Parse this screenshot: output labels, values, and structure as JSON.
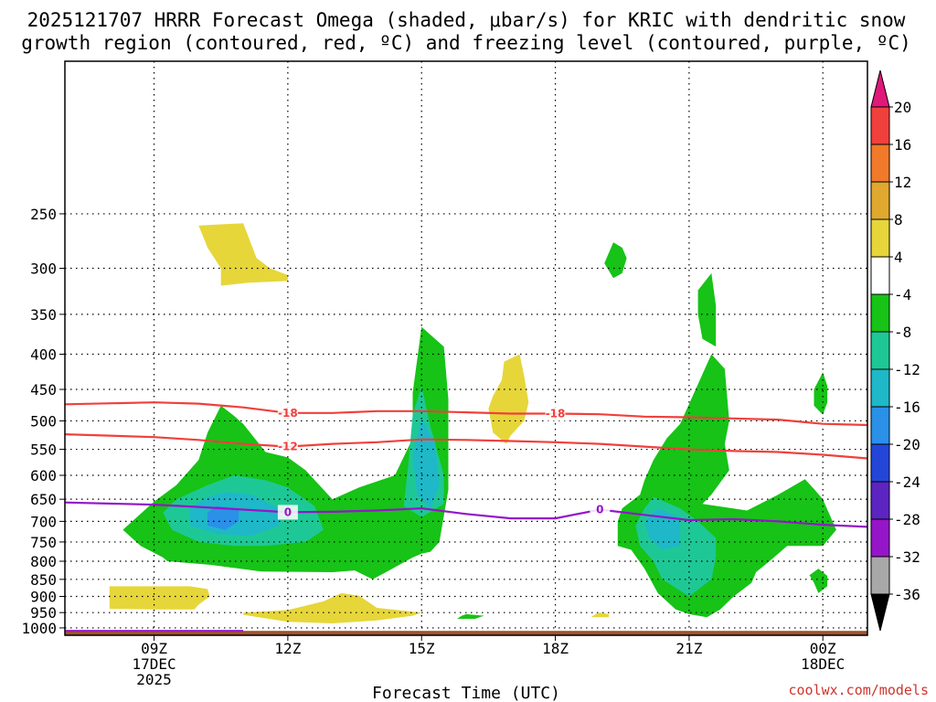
{
  "chart_data": {
    "type": "contour",
    "title_line1": "2025121707 HRRR Forecast Omega (shaded, μbar/s) for KRIC with dendritic snow",
    "title_line2": "growth region (contoured, red, ºC) and freezing level (contoured, purple, ºC)",
    "xlabel": "Forecast Time (UTC)",
    "credit": "coolwx.com/models",
    "x_range": [
      7,
      25
    ],
    "y_range": [
      1025,
      150
    ],
    "x_ticks": [
      {
        "v": 9,
        "l1": "09Z",
        "l2": "17DEC",
        "l3": "2025"
      },
      {
        "v": 12,
        "l1": "12Z"
      },
      {
        "v": 15,
        "l1": "15Z"
      },
      {
        "v": 18,
        "l1": "18Z"
      },
      {
        "v": 21,
        "l1": "21Z"
      },
      {
        "v": 24,
        "l1": "00Z",
        "l2": "18DEC"
      }
    ],
    "y_ticks": [
      "250",
      "300",
      "350",
      "400",
      "450",
      "500",
      "550",
      "600",
      "650",
      "700",
      "750",
      "800",
      "850",
      "900",
      "950",
      "1000"
    ],
    "colorbar_labels": [
      "20",
      "16",
      "12",
      "8",
      "4",
      "-4",
      "-8",
      "-12",
      "-16",
      "-20",
      "-24",
      "-28",
      "-32",
      "-36"
    ],
    "colorbar_colors": [
      "#e0187a",
      "#f0403c",
      "#f07a2a",
      "#e0a82e",
      "#e6d63a",
      "#ffffff",
      "#16c316",
      "#1ec896",
      "#1eb8c8",
      "#2a90e8",
      "#2446d8",
      "#5c24c0",
      "#9416c8",
      "#a8a8a8",
      "#000000"
    ],
    "series": [
      {
        "name": "-18C isotherm",
        "color": "#f0403c",
        "label": "-18",
        "x": [
          7,
          9,
          10,
          11,
          12,
          13,
          14,
          15,
          16,
          17,
          18,
          19,
          20,
          21,
          22,
          23,
          24,
          25
        ],
        "y": [
          473,
          470,
          472,
          478,
          487,
          487,
          484,
          484,
          486,
          488,
          488,
          489,
          493,
          494,
          496,
          498,
          505,
          507
        ]
      },
      {
        "name": "-12C isotherm",
        "color": "#f0403c",
        "label": "-12",
        "x": [
          7,
          9,
          10,
          11,
          12,
          13,
          14,
          15,
          16,
          17,
          18,
          19,
          20,
          21,
          22,
          23,
          24,
          25
        ],
        "y": [
          523,
          528,
          533,
          540,
          545,
          540,
          537,
          532,
          533,
          535,
          537,
          540,
          545,
          550,
          553,
          555,
          560,
          567
        ]
      },
      {
        "name": "Freezing level (0C)",
        "color": "#9416c8",
        "label": "0",
        "x": [
          7,
          9,
          10,
          11,
          12,
          13,
          14,
          15,
          16,
          17,
          18,
          19,
          20,
          21,
          22,
          23,
          24,
          25
        ],
        "y": [
          657,
          662,
          667,
          673,
          679,
          678,
          675,
          670,
          683,
          693,
          693,
          673,
          685,
          697,
          695,
          700,
          708,
          713
        ]
      }
    ],
    "shaded_regions": [
      {
        "level": "4",
        "color": "#e6d63a",
        "pts": [
          [
            10.0,
            260
          ],
          [
            11.0,
            258
          ],
          [
            11.3,
            290
          ],
          [
            11.6,
            300
          ],
          [
            12.0,
            307
          ],
          [
            12.0,
            313
          ],
          [
            11.1,
            315
          ],
          [
            10.5,
            318
          ],
          [
            10.5,
            300
          ],
          [
            10.2,
            280
          ]
        ]
      },
      {
        "level": "4",
        "color": "#e6d63a",
        "pts": [
          [
            9.8,
            870
          ],
          [
            10.2,
            878
          ],
          [
            10.25,
            900
          ],
          [
            10.0,
            925
          ],
          [
            9.9,
            940
          ],
          [
            9.0,
            940
          ],
          [
            8.0,
            938
          ],
          [
            8.0,
            870
          ]
        ]
      },
      {
        "level": "4",
        "color": "#e6d63a",
        "pts": [
          [
            11.0,
            950
          ],
          [
            12.0,
            942
          ],
          [
            12.8,
            915
          ],
          [
            13.2,
            890
          ],
          [
            13.6,
            898
          ],
          [
            14.0,
            935
          ],
          [
            15.0,
            950
          ],
          [
            14.8,
            960
          ],
          [
            14.0,
            975
          ],
          [
            13.0,
            985
          ],
          [
            12.0,
            980
          ],
          [
            11.0,
            957
          ]
        ]
      },
      {
        "level": "4",
        "color": "#e6d63a",
        "pts": [
          [
            16.8,
            436
          ],
          [
            16.85,
            410
          ],
          [
            17.2,
            400
          ],
          [
            17.3,
            430
          ],
          [
            17.4,
            470
          ],
          [
            17.3,
            500
          ],
          [
            17.0,
            525
          ],
          [
            16.9,
            540
          ],
          [
            16.6,
            520
          ],
          [
            16.5,
            480
          ],
          [
            16.6,
            460
          ]
        ]
      },
      {
        "level": "4",
        "color": "#e6d63a",
        "pts": [
          [
            19.0,
            950
          ],
          [
            19.2,
            955
          ],
          [
            19.2,
            965
          ],
          [
            18.8,
            965
          ],
          [
            18.9,
            955
          ]
        ]
      },
      {
        "level": "4",
        "color": "#e6d63a",
        "pts": [
          [
            21.0,
            700
          ],
          [
            21.1,
            740
          ],
          [
            21.0,
            790
          ],
          [
            20.6,
            790
          ],
          [
            20.4,
            760
          ],
          [
            20.4,
            720
          ],
          [
            20.7,
            700
          ]
        ]
      },
      {
        "level": "-4",
        "color": "#16c316",
        "pts": [
          [
            10.5,
            475
          ],
          [
            10.8,
            492
          ],
          [
            11.0,
            505
          ],
          [
            11.5,
            555
          ],
          [
            12.0,
            565
          ],
          [
            12.4,
            590
          ],
          [
            13.0,
            650
          ],
          [
            13.6,
            625
          ],
          [
            14.4,
            600
          ],
          [
            14.8,
            530
          ],
          [
            14.8,
            455
          ],
          [
            15.0,
            365
          ],
          [
            15.5,
            390
          ],
          [
            15.6,
            465
          ],
          [
            15.6,
            630
          ],
          [
            15.4,
            750
          ],
          [
            15.2,
            775
          ],
          [
            15.0,
            780
          ],
          [
            14.8,
            790
          ],
          [
            14.2,
            830
          ],
          [
            13.9,
            850
          ],
          [
            13.5,
            825
          ],
          [
            13.0,
            830
          ],
          [
            11.4,
            828
          ],
          [
            10.3,
            810
          ],
          [
            9.3,
            800
          ],
          [
            9.2,
            790
          ],
          [
            8.7,
            760
          ],
          [
            8.3,
            720
          ],
          [
            9.0,
            655
          ],
          [
            9.5,
            620
          ],
          [
            10.0,
            570
          ],
          [
            10.2,
            520
          ],
          [
            10.4,
            490
          ]
        ]
      },
      {
        "level": "-4",
        "color": "#16c316",
        "pts": [
          [
            20.8,
            505
          ],
          [
            21.5,
            400
          ],
          [
            21.8,
            420
          ],
          [
            21.9,
            500
          ],
          [
            21.8,
            540
          ],
          [
            21.9,
            590
          ],
          [
            21.5,
            640
          ],
          [
            21.3,
            660
          ],
          [
            22.3,
            675
          ],
          [
            23.0,
            640
          ],
          [
            23.6,
            608
          ],
          [
            23.8,
            628
          ],
          [
            24.0,
            650
          ],
          [
            24.3,
            720
          ],
          [
            24.0,
            760
          ],
          [
            23.2,
            760
          ],
          [
            23.0,
            780
          ],
          [
            22.8,
            800
          ],
          [
            22.5,
            830
          ],
          [
            22.4,
            860
          ],
          [
            22.0,
            900
          ],
          [
            21.7,
            940
          ],
          [
            21.4,
            965
          ],
          [
            21.0,
            955
          ],
          [
            20.7,
            940
          ],
          [
            20.3,
            890
          ],
          [
            20.0,
            820
          ],
          [
            19.7,
            770
          ],
          [
            19.4,
            760
          ],
          [
            19.4,
            700
          ],
          [
            19.5,
            670
          ],
          [
            19.9,
            640
          ],
          [
            20.0,
            610
          ],
          [
            20.2,
            570
          ],
          [
            20.5,
            530
          ]
        ]
      },
      {
        "level": "-4",
        "color": "#16c316",
        "pts": [
          [
            21.2,
            323
          ],
          [
            21.5,
            305
          ],
          [
            21.6,
            340
          ],
          [
            21.6,
            390
          ],
          [
            21.3,
            380
          ],
          [
            21.2,
            350
          ]
        ]
      },
      {
        "level": "-4",
        "color": "#16c316",
        "pts": [
          [
            19.3,
            275
          ],
          [
            19.5,
            280
          ],
          [
            19.6,
            290
          ],
          [
            19.5,
            305
          ],
          [
            19.3,
            310
          ],
          [
            19.1,
            295
          ]
        ]
      },
      {
        "level": "-4",
        "color": "#16c316",
        "pts": [
          [
            24.0,
            425
          ],
          [
            24.1,
            445
          ],
          [
            24.1,
            470
          ],
          [
            24.0,
            490
          ],
          [
            23.8,
            475
          ],
          [
            23.8,
            450
          ]
        ]
      },
      {
        "level": "-4",
        "color": "#16c316",
        "pts": [
          [
            23.9,
            820
          ],
          [
            24.1,
            840
          ],
          [
            24.1,
            870
          ],
          [
            23.9,
            890
          ],
          [
            23.8,
            860
          ],
          [
            23.7,
            838
          ]
        ]
      },
      {
        "level": "-4",
        "color": "#16c316",
        "pts": [
          [
            16.0,
            955
          ],
          [
            16.4,
            960
          ],
          [
            16.2,
            970
          ],
          [
            15.8,
            970
          ],
          [
            15.9,
            960
          ]
        ]
      },
      {
        "level": "-8",
        "color": "#1ec896",
        "pts": [
          [
            10.8,
            600
          ],
          [
            11.5,
            610
          ],
          [
            12.0,
            625
          ],
          [
            12.6,
            665
          ],
          [
            12.8,
            720
          ],
          [
            12.4,
            750
          ],
          [
            11.5,
            760
          ],
          [
            10.8,
            760
          ],
          [
            10.0,
            750
          ],
          [
            9.4,
            720
          ],
          [
            9.2,
            680
          ],
          [
            9.5,
            650
          ],
          [
            10.2,
            620
          ]
        ]
      },
      {
        "level": "-8",
        "color": "#1ec896",
        "pts": [
          [
            14.8,
            490
          ],
          [
            15.0,
            445
          ],
          [
            15.2,
            510
          ],
          [
            15.5,
            600
          ],
          [
            15.5,
            660
          ],
          [
            15.0,
            690
          ],
          [
            14.6,
            665
          ],
          [
            14.7,
            580
          ]
        ]
      },
      {
        "level": "-8",
        "color": "#1ec896",
        "pts": [
          [
            20.2,
            645
          ],
          [
            20.8,
            670
          ],
          [
            21.2,
            700
          ],
          [
            21.6,
            740
          ],
          [
            21.6,
            790
          ],
          [
            21.5,
            850
          ],
          [
            21.0,
            900
          ],
          [
            20.4,
            850
          ],
          [
            20.2,
            800
          ],
          [
            19.9,
            760
          ],
          [
            19.8,
            710
          ],
          [
            20.0,
            670
          ]
        ]
      },
      {
        "level": "-12",
        "color": "#1eb8c8",
        "pts": [
          [
            10.6,
            635
          ],
          [
            11.2,
            640
          ],
          [
            11.8,
            670
          ],
          [
            11.8,
            710
          ],
          [
            11.2,
            735
          ],
          [
            10.4,
            730
          ],
          [
            9.8,
            710
          ],
          [
            9.8,
            670
          ],
          [
            10.2,
            645
          ]
        ]
      },
      {
        "level": "-12",
        "color": "#1eb8c8",
        "pts": [
          [
            15.0,
            495
          ],
          [
            15.3,
            540
          ],
          [
            15.4,
            620
          ],
          [
            15.2,
            670
          ],
          [
            14.9,
            640
          ],
          [
            14.8,
            560
          ]
        ]
      },
      {
        "level": "-12",
        "color": "#1eb8c8",
        "pts": [
          [
            20.3,
            670
          ],
          [
            20.8,
            690
          ],
          [
            20.8,
            760
          ],
          [
            20.4,
            770
          ],
          [
            20.1,
            740
          ],
          [
            20.0,
            700
          ]
        ]
      },
      {
        "level": "-16",
        "color": "#2a90e8",
        "pts": [
          [
            10.4,
            665
          ],
          [
            10.9,
            670
          ],
          [
            10.9,
            700
          ],
          [
            10.6,
            720
          ],
          [
            10.2,
            710
          ],
          [
            10.2,
            680
          ]
        ]
      }
    ],
    "ground": {
      "color": "#a0522d"
    },
    "low_purple_strip": {
      "color": "#9416c8",
      "x": [
        7,
        11
      ]
    }
  }
}
